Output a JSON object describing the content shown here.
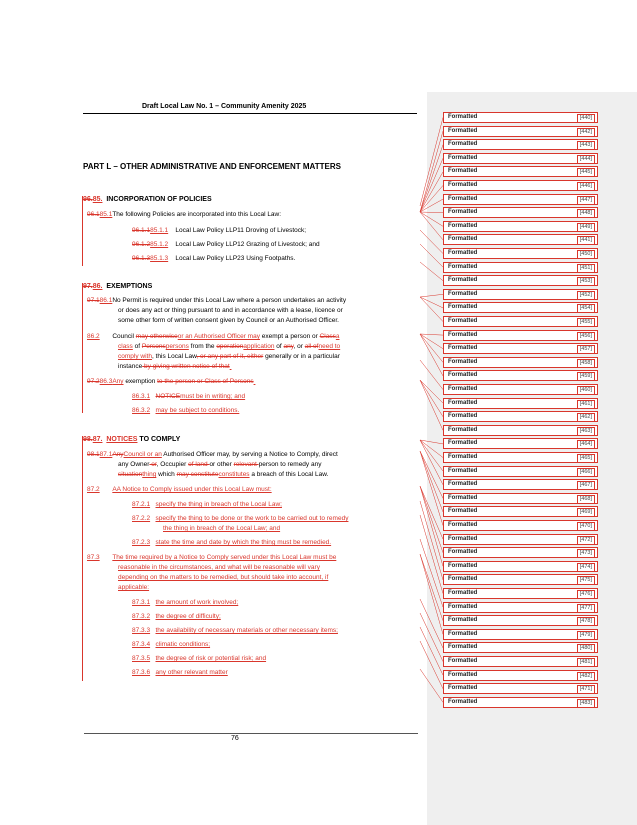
{
  "header": {
    "title": "Draft Local Law No. 1 – Community Amenity 2025"
  },
  "part_title": "PART L – OTHER ADMINISTRATIVE AND ENFORCEMENT MATTERS",
  "s96": {
    "num_del": "96.",
    "num_ins": "85.",
    "title": "INCORPORATION OF POLICIES",
    "p1_del": "96.1",
    "p1_ins": "85.1",
    "p1_text": "The following Policies are incorporated into this Local Law:",
    "items": [
      {
        "del": "96.1.1",
        "ins": "85.1.1",
        "text": "Local Law Policy LLP11 Droving of Livestock;"
      },
      {
        "del": "96.1.2",
        "ins": "85.1.2",
        "text": "Local Law Policy LLP12 Grazing of Livestock; and"
      },
      {
        "del": "96.1.3",
        "ins": "85.1.3",
        "text": "Local Law Policy LLP23 Using Footpaths."
      }
    ]
  },
  "s97": {
    "num_del": "97.",
    "num_ins": "86.",
    "title": "EXEMPTIONS",
    "p1_del": "97.1",
    "p1_ins": "86.1",
    "p1_l1": "No Permit is required under this Local Law where a person undertakes an activity",
    "p1_l2": "or does any act or thing pursuant to and in accordance with a lease, licence or",
    "p1_l3": "some other form of written consent given by Council or an Authorised Officer.",
    "p2_num": "86.2",
    "p2_a": "Council ",
    "p2_b": "may otherwise",
    "p2_c": "or an Authorised Officer may",
    "p2_d": " exempt a person or ",
    "p2_e": "Class",
    "p2_f": "a",
    "p2_g": "class",
    "p2_h": " of ",
    "p2_i": "Persons",
    "p2_j": "persons",
    "p2_k": " from the ",
    "p2_l": "operation",
    "p2_m": "application",
    "p2_n": " of ",
    "p2_o": "any",
    "p2_p": ", or ",
    "p2_q": "all of",
    "p2_r": "need to",
    "p2_s": "comply with",
    "p2_t": ", this Local Law",
    "p2_u": ", or any part of it, either",
    "p2_v": " generally or in a particular",
    "p2_w": "instance",
    "p2_x": " by giving written notice of that",
    "p3_del": "97.2",
    "p3_ins": "86.3",
    "p3_a": "Any",
    "p3_b": " exemption ",
    "p3_c": "to the person or Class of Persons",
    "p3_items": [
      {
        "num": "86.3.1",
        "del": "NOTICE",
        "ins": "must be in writing; and"
      },
      {
        "num": "86.3.2",
        "ins": "may be subject to conditions."
      }
    ]
  },
  "s98": {
    "num_del": "98.",
    "num_ins": "87.",
    "title_ins": "NOTICES",
    "title_rest": " TO COMPLY",
    "p1_del": "98.1",
    "p1_ins": "87.1",
    "p1_a": "Any",
    "p1_b": "Council or an",
    "p1_c": " Authorised Officer may, by serving a Notice to Comply, direct",
    "p1_d": "any Owner",
    "p1_e": " or",
    "p1_f": ", Occupier ",
    "p1_g": "of land ",
    "p1_h": "or other ",
    "p1_i": "relevant ",
    "p1_j": "person to remedy any",
    "p1_k": "situation",
    "p1_l": "thing",
    "p1_m": " which ",
    "p1_n": "may constitute",
    "p1_o": "constitutes",
    "p1_p": " a breach of this Local Law.",
    "p2_num": "87.2",
    "p2_text": "AA Notice to Comply issued under this Local Law must:",
    "p2_items": [
      {
        "num": "87.2.1",
        "l1": "specify the thing in breach of the Local Law;",
        "l2": ""
      },
      {
        "num": "87.2.2",
        "l1": "specify the thing to be done or the work to be carried out to remedy",
        "l2": "the thing in breach of the Local Law; and"
      },
      {
        "num": "87.2.3",
        "l1": "state the time and date by which the thing must be remedied.",
        "l2": ""
      }
    ],
    "p3_num": "87.3",
    "p3_l1": "The time required by a Notice to Comply served under this Local Law must be",
    "p3_l2": "reasonable in the circumstances, and what will be reasonable will vary",
    "p3_l3": "depending on the matters to be remedied, but should take into account, if",
    "p3_l4": "applicable:",
    "p3_items": [
      {
        "num": "87.3.1",
        "text": "the amount of work involved;"
      },
      {
        "num": "87.3.2",
        "text": "the degree of difficulty;"
      },
      {
        "num": "87.3.3",
        "text": "the availability of necessary materials or other necessary items;"
      },
      {
        "num": "87.3.4",
        "text": "climatic conditions;"
      },
      {
        "num": "87.3.5",
        "text": "the degree of risk or potential risk; and"
      },
      {
        "num": "87.3.6",
        "text": "any other relevant matter"
      }
    ]
  },
  "footer": {
    "page_number": "76"
  },
  "balloons": [
    {
      "label": "Formatted",
      "ref": "[440]"
    },
    {
      "label": "Formatted",
      "ref": "[442]"
    },
    {
      "label": "Formatted",
      "ref": "[443]"
    },
    {
      "label": "Formatted",
      "ref": "[444]"
    },
    {
      "label": "Formatted",
      "ref": "[445]"
    },
    {
      "label": "Formatted",
      "ref": "[446]"
    },
    {
      "label": "Formatted",
      "ref": "[447]"
    },
    {
      "label": "Formatted",
      "ref": "[448]"
    },
    {
      "label": "Formatted",
      "ref": "[449]"
    },
    {
      "label": "Formatted",
      "ref": "[441]"
    },
    {
      "label": "Formatted",
      "ref": "[450]"
    },
    {
      "label": "Formatted",
      "ref": "[451]"
    },
    {
      "label": "Formatted",
      "ref": "[453]"
    },
    {
      "label": "Formatted",
      "ref": "[452]"
    },
    {
      "label": "Formatted",
      "ref": "[454]"
    },
    {
      "label": "Formatted",
      "ref": "[455]"
    },
    {
      "label": "Formatted",
      "ref": "[456]"
    },
    {
      "label": "Formatted",
      "ref": "[457]"
    },
    {
      "label": "Formatted",
      "ref": "[458]"
    },
    {
      "label": "Formatted",
      "ref": "[459]"
    },
    {
      "label": "Formatted",
      "ref": "[460]"
    },
    {
      "label": "Formatted",
      "ref": "[461]"
    },
    {
      "label": "Formatted",
      "ref": "[462]"
    },
    {
      "label": "Formatted",
      "ref": "[463]"
    },
    {
      "label": "Formatted",
      "ref": "[464]"
    },
    {
      "label": "Formatted",
      "ref": "[465]"
    },
    {
      "label": "Formatted",
      "ref": "[466]"
    },
    {
      "label": "Formatted",
      "ref": "[467]"
    },
    {
      "label": "Formatted",
      "ref": "[468]"
    },
    {
      "label": "Formatted",
      "ref": "[469]"
    },
    {
      "label": "Formatted",
      "ref": "[470]"
    },
    {
      "label": "Formatted",
      "ref": "[472]"
    },
    {
      "label": "Formatted",
      "ref": "[473]"
    },
    {
      "label": "Formatted",
      "ref": "[474]"
    },
    {
      "label": "Formatted",
      "ref": "[475]"
    },
    {
      "label": "Formatted",
      "ref": "[476]"
    },
    {
      "label": "Formatted",
      "ref": "[477]"
    },
    {
      "label": "Formatted",
      "ref": "[478]"
    },
    {
      "label": "Formatted",
      "ref": "[479]"
    },
    {
      "label": "Formatted",
      "ref": "[480]"
    },
    {
      "label": "Formatted",
      "ref": "[481]"
    },
    {
      "label": "Formatted",
      "ref": "[482]"
    },
    {
      "label": "Formatted",
      "ref": "[471]"
    },
    {
      "label": "Formatted",
      "ref": "[483]"
    }
  ]
}
